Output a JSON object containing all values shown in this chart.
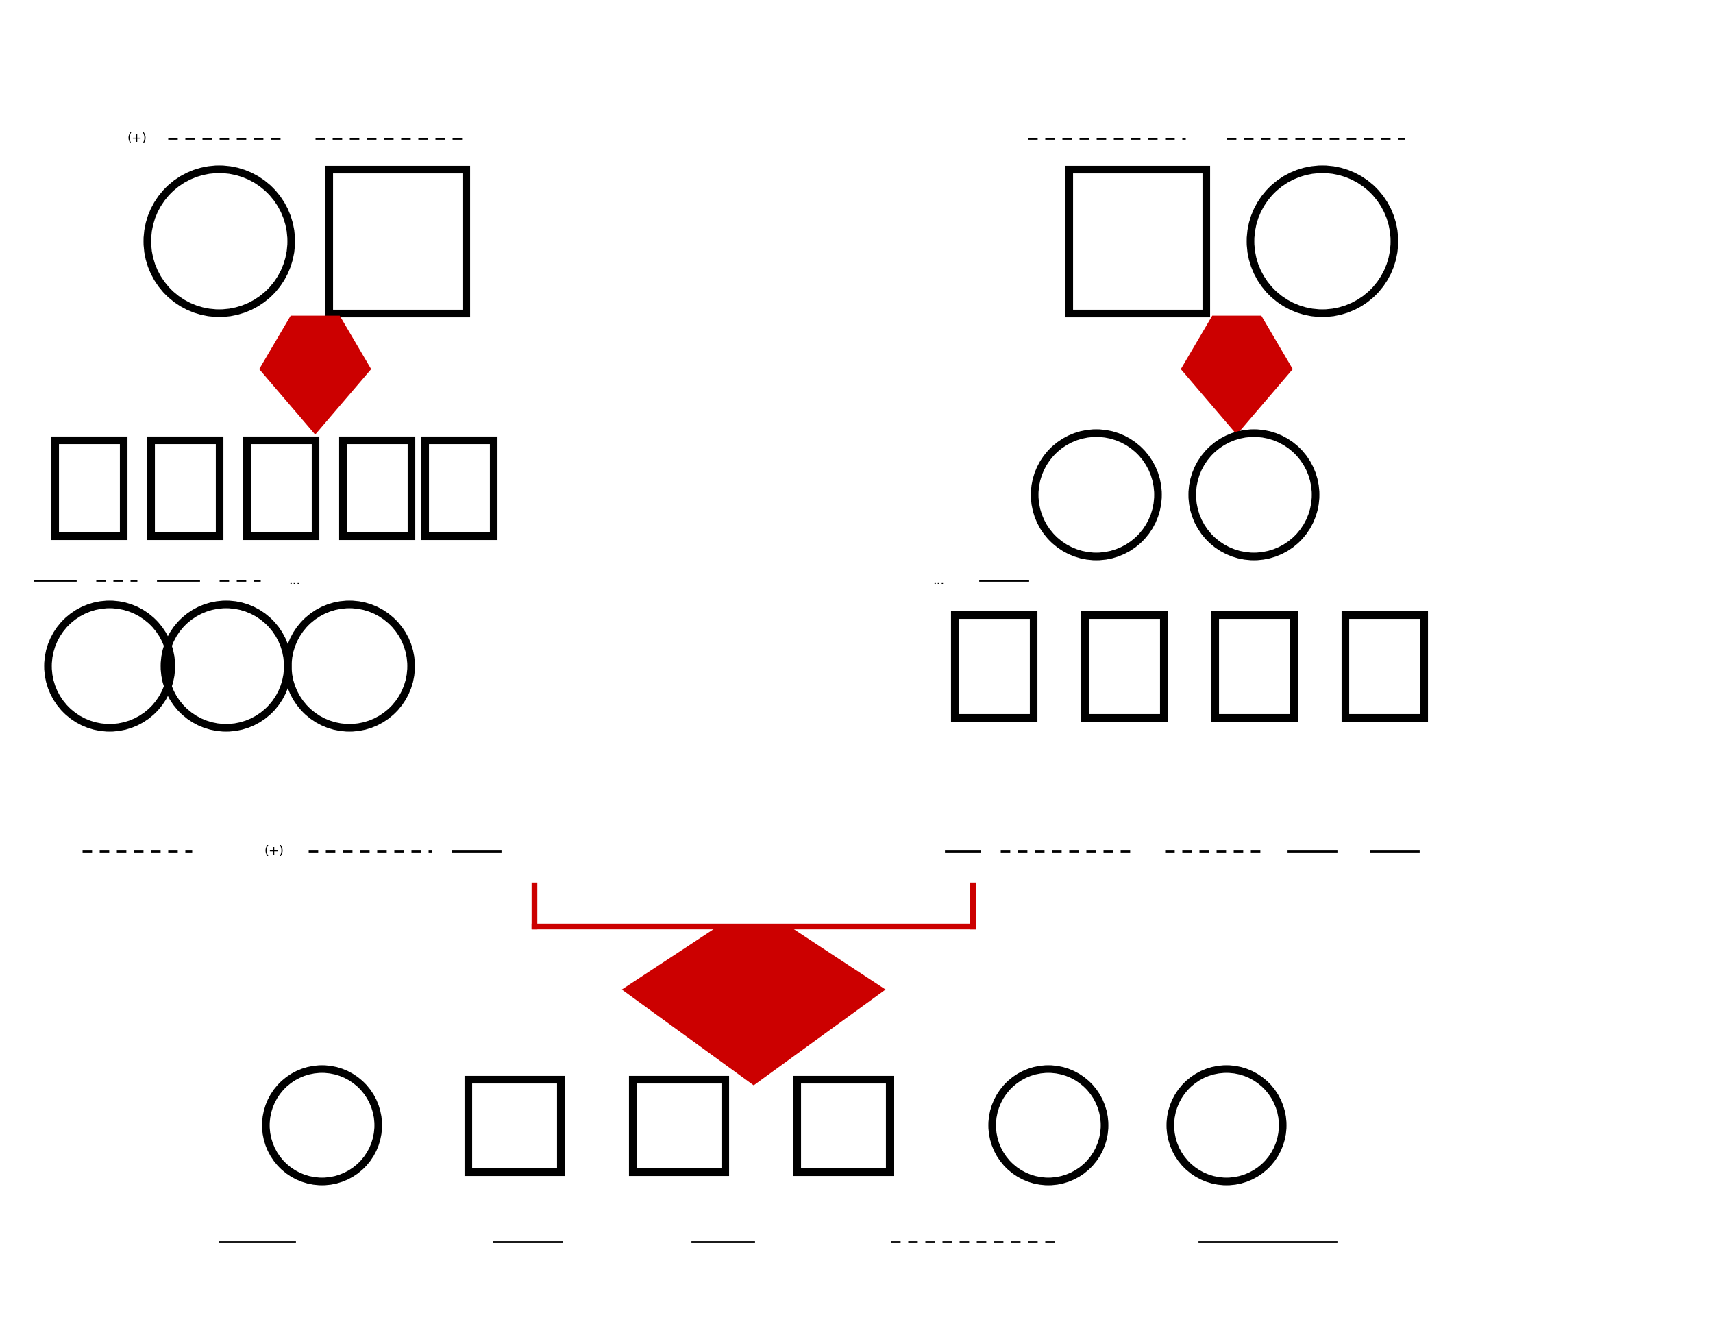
{
  "bg_color": "#ffffff",
  "black": "#000000",
  "red": "#cc0000",
  "lw_thick": 8,
  "lw_medium": 6,
  "lw_thin": 2
}
